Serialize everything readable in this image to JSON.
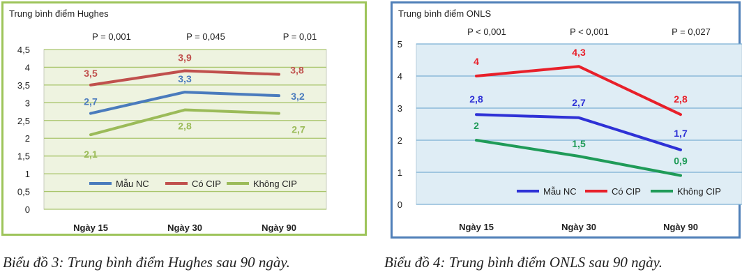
{
  "captions": {
    "left": "Biểu đồ 3: Trung bình điểm Hughes sau 90 ngày.",
    "right": "Biểu đồ 4: Trung bình điểm ONLS sau 90 ngày."
  },
  "chart_data": [
    {
      "type": "line",
      "title": "Trung bình điểm Hughes",
      "categories": [
        "Ngày 15",
        "Ngày 30",
        "Ngày 90"
      ],
      "p_values": [
        "P = 0,001",
        "P = 0,045",
        "P = 0,01"
      ],
      "ylim": [
        0,
        4.5
      ],
      "yticks": [
        "0",
        "0,5",
        "1",
        "1,5",
        "2",
        "2,5",
        "3",
        "3,5",
        "4",
        "4,5"
      ],
      "grid": true,
      "legend_position": "bottom-right",
      "series": [
        {
          "name": "Mẫu NC",
          "values": [
            2.7,
            3.3,
            3.2
          ],
          "labels": [
            "2,7",
            "3,3",
            "3,2"
          ],
          "color": "#4a7bbd"
        },
        {
          "name": "Có CIP",
          "values": [
            3.5,
            3.9,
            3.8
          ],
          "labels": [
            "3,5",
            "3,9",
            "3,8"
          ],
          "color": "#c0504d"
        },
        {
          "name": "Không CIP",
          "values": [
            2.1,
            2.8,
            2.7
          ],
          "labels": [
            "2,1",
            "2,8",
            "2,7"
          ],
          "color": "#9bbb59"
        }
      ]
    },
    {
      "type": "line",
      "title": "Trung bình điểm ONLS",
      "categories": [
        "Ngày 15",
        "Ngày 30",
        "Ngày 90"
      ],
      "p_values": [
        "P < 0,001",
        "P < 0,001",
        "P = 0,027"
      ],
      "ylim": [
        0,
        5
      ],
      "yticks": [
        "0",
        "1",
        "2",
        "3",
        "4",
        "5"
      ],
      "grid": true,
      "legend_position": "bottom-right",
      "series": [
        {
          "name": "Mẫu NC",
          "values": [
            2.8,
            2.7,
            1.7
          ],
          "labels": [
            "2,8",
            "2,7",
            "1,7"
          ],
          "color": "#2e31d6"
        },
        {
          "name": "Có CIP",
          "values": [
            4,
            4.3,
            2.8
          ],
          "labels": [
            "4",
            "4,3",
            "2,8"
          ],
          "color": "#e8202a"
        },
        {
          "name": "Không CIP",
          "values": [
            2,
            1.5,
            0.9
          ],
          "labels": [
            "2",
            "1,5",
            "0,9"
          ],
          "color": "#1f9b58"
        }
      ]
    }
  ]
}
